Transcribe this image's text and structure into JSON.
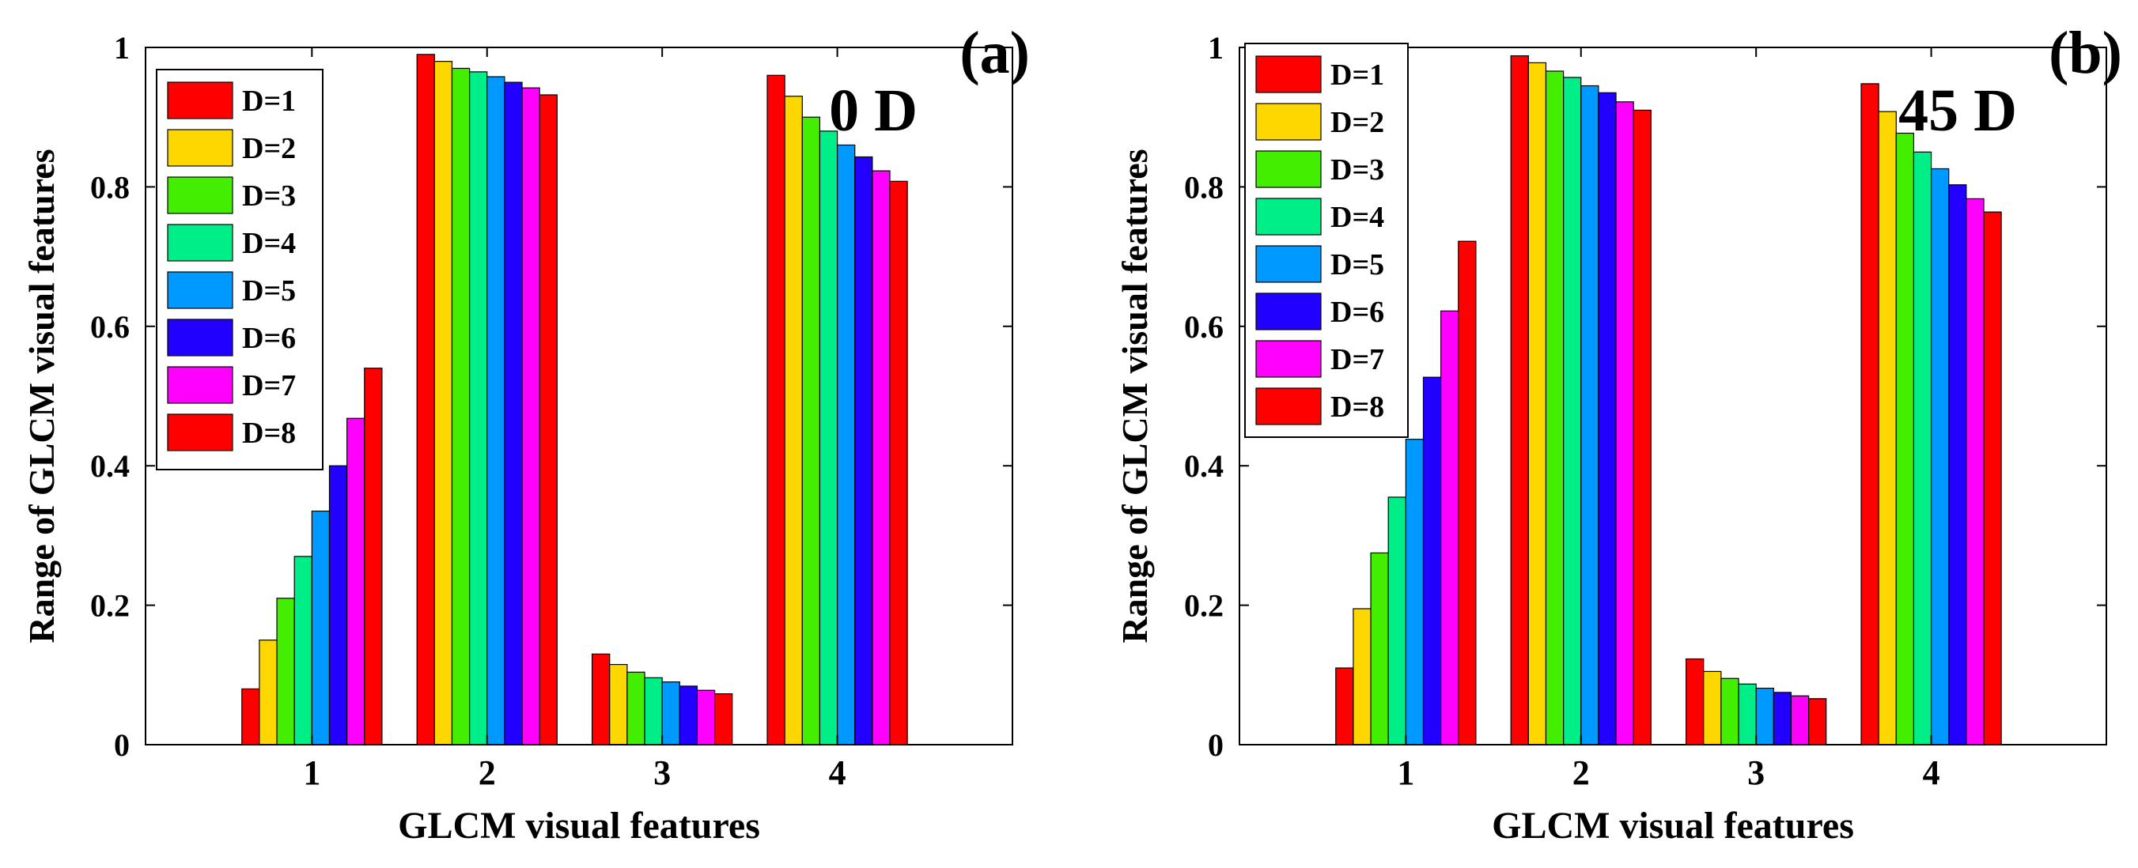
{
  "series_colors": [
    "#ff0000",
    "#ffd700",
    "#44ee00",
    "#00ee88",
    "#0099ff",
    "#2200ff",
    "#ff00ff",
    "#ff0000"
  ],
  "chart_data": [
    {
      "type": "bar",
      "panel_label": "(a)",
      "annotation": "0 D",
      "xlabel": "GLCM visual features",
      "ylabel": "Range of GLCM visual features",
      "categories": [
        "1",
        "2",
        "3",
        "4"
      ],
      "xlim": [
        0.05,
        5
      ],
      "ylim": [
        0,
        1
      ],
      "yticks": [
        0,
        0.2,
        0.4,
        0.6,
        0.8,
        1
      ],
      "ytick_labels": [
        "0",
        "0.2",
        "0.4",
        "0.6",
        "0.8",
        "1"
      ],
      "legend_position": "top-left",
      "series": [
        {
          "name": "D=1",
          "values": [
            0.08,
            0.99,
            0.13,
            0.96
          ]
        },
        {
          "name": "D=2",
          "values": [
            0.15,
            0.98,
            0.115,
            0.93
          ]
        },
        {
          "name": "D=3",
          "values": [
            0.21,
            0.97,
            0.104,
            0.9
          ]
        },
        {
          "name": "D=4",
          "values": [
            0.27,
            0.965,
            0.096,
            0.88
          ]
        },
        {
          "name": "D=5",
          "values": [
            0.335,
            0.958,
            0.09,
            0.86
          ]
        },
        {
          "name": "D=6",
          "values": [
            0.4,
            0.95,
            0.084,
            0.843
          ]
        },
        {
          "name": "D=7",
          "values": [
            0.468,
            0.942,
            0.078,
            0.823
          ]
        },
        {
          "name": "D=8",
          "values": [
            0.54,
            0.932,
            0.073,
            0.808
          ]
        }
      ]
    },
    {
      "type": "bar",
      "panel_label": "(b)",
      "annotation": "45 D",
      "xlabel": "GLCM visual features",
      "ylabel": "Range of GLCM visual features",
      "categories": [
        "1",
        "2",
        "3",
        "4"
      ],
      "xlim": [
        0.05,
        5
      ],
      "ylim": [
        0,
        1
      ],
      "yticks": [
        0,
        0.2,
        0.4,
        0.6,
        0.8,
        1
      ],
      "ytick_labels": [
        "0",
        "0.2",
        "0.4",
        "0.6",
        "0.8",
        "1"
      ],
      "legend_position": "top-left",
      "series": [
        {
          "name": "D=1",
          "values": [
            0.11,
            0.988,
            0.123,
            0.948
          ]
        },
        {
          "name": "D=2",
          "values": [
            0.195,
            0.978,
            0.105,
            0.908
          ]
        },
        {
          "name": "D=3",
          "values": [
            0.275,
            0.966,
            0.095,
            0.877
          ]
        },
        {
          "name": "D=4",
          "values": [
            0.355,
            0.957,
            0.087,
            0.85
          ]
        },
        {
          "name": "D=5",
          "values": [
            0.438,
            0.945,
            0.081,
            0.826
          ]
        },
        {
          "name": "D=6",
          "values": [
            0.527,
            0.935,
            0.075,
            0.803
          ]
        },
        {
          "name": "D=7",
          "values": [
            0.622,
            0.922,
            0.07,
            0.783
          ]
        },
        {
          "name": "D=8",
          "values": [
            0.722,
            0.91,
            0.066,
            0.764
          ]
        }
      ]
    }
  ]
}
